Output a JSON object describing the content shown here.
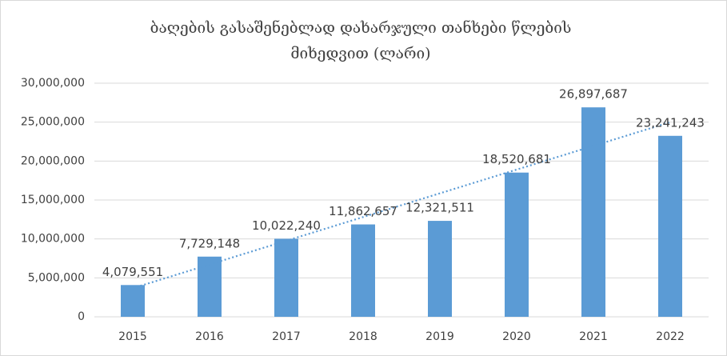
{
  "chart_data": {
    "type": "bar",
    "title": "ბაღების გასაშენებლად დახარჯული თანხები წლების მიხედვით (ლარი)",
    "categories": [
      "2015",
      "2016",
      "2017",
      "2018",
      "2019",
      "2020",
      "2021",
      "2022"
    ],
    "values": [
      4079551,
      7729148,
      10022240,
      11862657,
      12321511,
      18520681,
      26897687,
      23241243
    ],
    "value_labels": [
      "4,079,551",
      "7,729,148",
      "10,022,240",
      "11,862,657",
      "12,321,511",
      "18,520,681",
      "26,897,687",
      "23,241,243"
    ],
    "color": "#5b9bd5",
    "ylim": [
      0,
      30000000
    ],
    "yticks": [
      0,
      {
        "value": 5000000,
        "label": "5,000,000"
      },
      {
        "value": 10000000,
        "label": "10,000,000"
      },
      {
        "value": 15000000,
        "label": "15,000,000"
      },
      {
        "value": 20000000,
        "label": "20,000,000"
      },
      {
        "value": 25000000,
        "label": "25,000,000"
      },
      {
        "value": 30000000,
        "label": "30,000,000"
      }
    ],
    "grid": true,
    "trendline": "linear"
  }
}
